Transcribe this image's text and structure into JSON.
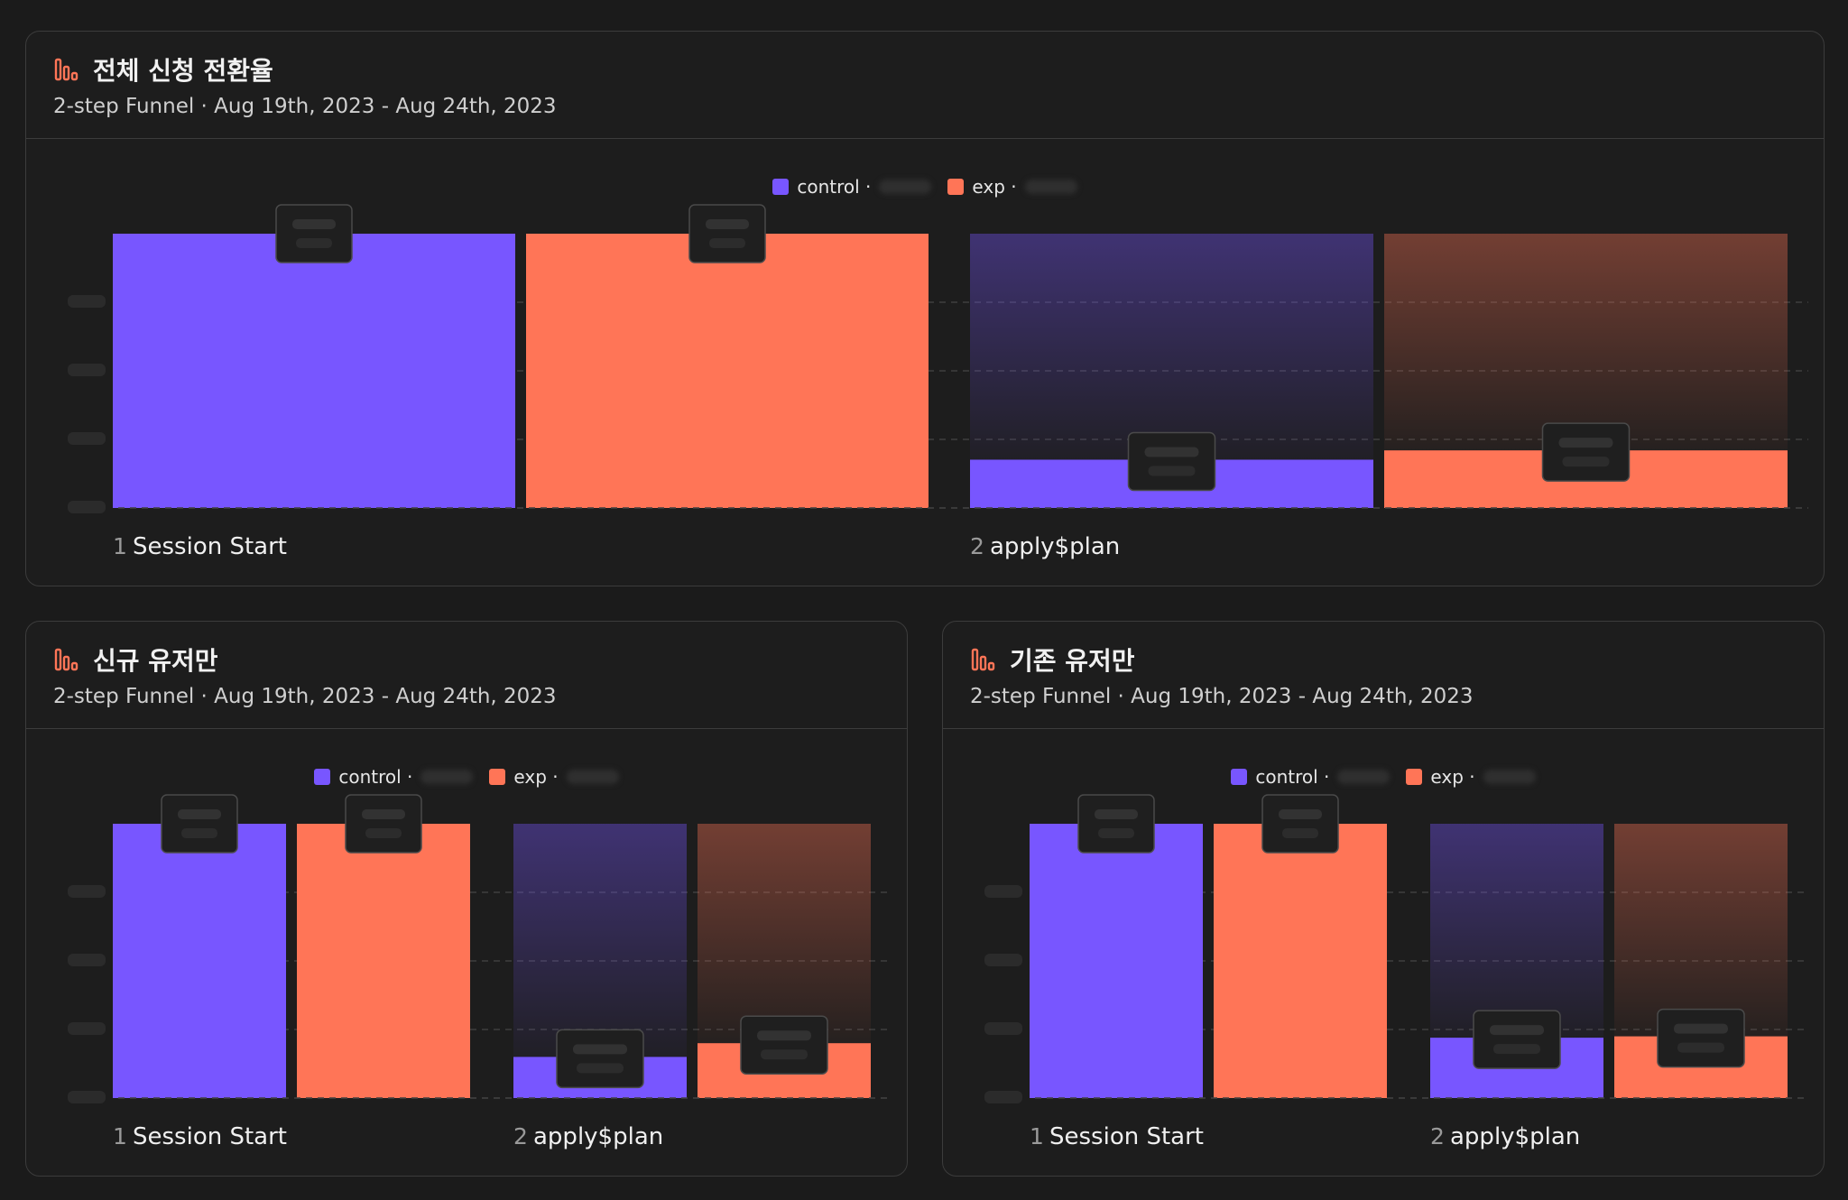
{
  "colors": {
    "control": "#7856ff",
    "exp": "#ff7557",
    "accent_icon": "#ff7557"
  },
  "cards": [
    {
      "title": "전체 신청 전환율",
      "subtitle": "2-step Funnel · Aug 19th, 2023 - Aug 24th, 2023",
      "legend": [
        {
          "name": "control",
          "label": "control ·"
        },
        {
          "name": "exp",
          "label": "exp ·"
        }
      ]
    },
    {
      "title": "신규 유저만",
      "subtitle": "2-step Funnel · Aug 19th, 2023 - Aug 24th, 2023",
      "legend": [
        {
          "name": "control",
          "label": "control ·"
        },
        {
          "name": "exp",
          "label": "exp ·"
        }
      ]
    },
    {
      "title": "기존 유저만",
      "subtitle": "2-step Funnel · Aug 19th, 2023 - Aug 24th, 2023",
      "legend": [
        {
          "name": "control",
          "label": "control ·"
        },
        {
          "name": "exp",
          "label": "exp ·"
        }
      ]
    }
  ],
  "chart_data": [
    {
      "type": "bar",
      "title": "전체 신청 전환율",
      "categories": [
        "1",
        "2"
      ],
      "step_labels": [
        "Session Start",
        "apply$plan"
      ],
      "ylim": [
        0,
        100
      ],
      "grid": true,
      "legend_position": "top-center",
      "series": [
        {
          "name": "control",
          "values": [
            100,
            17.6
          ]
        },
        {
          "name": "exp",
          "values": [
            100,
            21.0
          ]
        }
      ]
    },
    {
      "type": "bar",
      "title": "신규 유저만",
      "categories": [
        "1",
        "2"
      ],
      "step_labels": [
        "Session Start",
        "apply$plan"
      ],
      "ylim": [
        0,
        100
      ],
      "grid": true,
      "legend_position": "top-center",
      "series": [
        {
          "name": "control",
          "values": [
            100,
            15.0
          ]
        },
        {
          "name": "exp",
          "values": [
            100,
            20.0
          ]
        }
      ]
    },
    {
      "type": "bar",
      "title": "기존 유저만",
      "categories": [
        "1",
        "2"
      ],
      "step_labels": [
        "Session Start",
        "apply$plan"
      ],
      "ylim": [
        0,
        100
      ],
      "grid": true,
      "legend_position": "top-center",
      "series": [
        {
          "name": "control",
          "values": [
            100,
            22.0
          ]
        },
        {
          "name": "exp",
          "values": [
            100,
            22.5
          ]
        }
      ]
    }
  ]
}
